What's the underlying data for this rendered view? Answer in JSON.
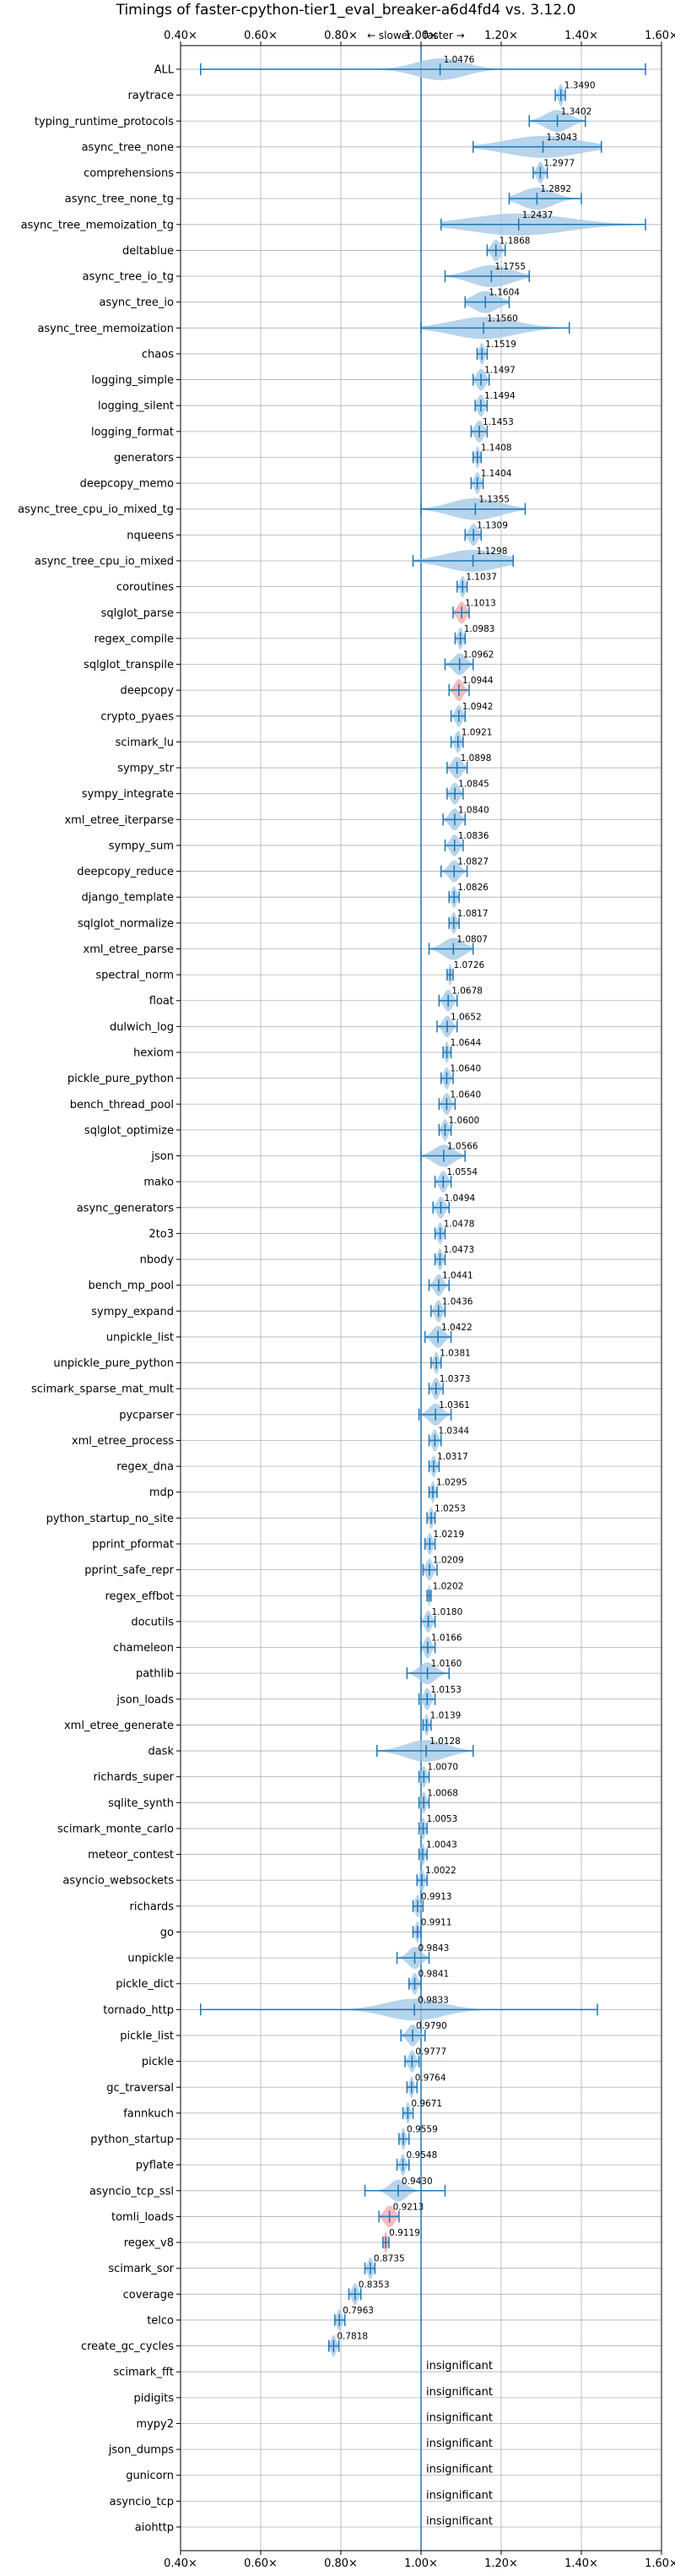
{
  "chart_data": {
    "type": "violin",
    "title": "Timings of faster-cpython-tier1_eval_breaker-a6d4fd4 vs. 3.12.0",
    "subtitle_left": "← slower",
    "subtitle_right": "faster →",
    "xlim": [
      0.4,
      1.6
    ],
    "xticks": [
      "0.40×",
      "0.60×",
      "0.80×",
      "1.00×",
      "1.20×",
      "1.40×",
      "1.60×"
    ],
    "xtick_values": [
      0.4,
      0.6,
      0.8,
      1.0,
      1.2,
      1.4,
      1.6
    ],
    "reference_line": 1.0,
    "grid": true,
    "benchmarks": [
      {
        "name": "ALL",
        "value": 1.0476,
        "label": "1.0476",
        "lo": 0.45,
        "hi": 1.56,
        "spread": 0.06
      },
      {
        "name": "raytrace",
        "value": 1.349,
        "label": "1.3490",
        "lo": 1.335,
        "hi": 1.36,
        "spread": 0.006
      },
      {
        "name": "typing_runtime_protocols",
        "value": 1.3402,
        "label": "1.3402",
        "lo": 1.27,
        "hi": 1.41,
        "spread": 0.03
      },
      {
        "name": "async_tree_none",
        "value": 1.3043,
        "label": "1.3043",
        "lo": 1.13,
        "hi": 1.45,
        "spread": 0.09
      },
      {
        "name": "comprehensions",
        "value": 1.2977,
        "label": "1.2977",
        "lo": 1.28,
        "hi": 1.315,
        "spread": 0.008
      },
      {
        "name": "async_tree_none_tg",
        "value": 1.2892,
        "label": "1.2892",
        "lo": 1.22,
        "hi": 1.4,
        "spread": 0.04
      },
      {
        "name": "async_tree_memoization_tg",
        "value": 1.2437,
        "label": "1.2437",
        "lo": 1.05,
        "hi": 1.56,
        "spread": 0.12
      },
      {
        "name": "deltablue",
        "value": 1.1868,
        "label": "1.1868",
        "lo": 1.165,
        "hi": 1.21,
        "spread": 0.01
      },
      {
        "name": "async_tree_io_tg",
        "value": 1.1755,
        "label": "1.1755",
        "lo": 1.06,
        "hi": 1.27,
        "spread": 0.05
      },
      {
        "name": "async_tree_io",
        "value": 1.1604,
        "label": "1.1604",
        "lo": 1.11,
        "hi": 1.22,
        "spread": 0.03
      },
      {
        "name": "async_tree_memoization",
        "value": 1.156,
        "label": "1.1560",
        "lo": 1.0,
        "hi": 1.37,
        "spread": 0.08
      },
      {
        "name": "chaos",
        "value": 1.1519,
        "label": "1.1519",
        "lo": 1.14,
        "hi": 1.165,
        "spread": 0.006
      },
      {
        "name": "logging_simple",
        "value": 1.1497,
        "label": "1.1497",
        "lo": 1.13,
        "hi": 1.17,
        "spread": 0.01
      },
      {
        "name": "logging_silent",
        "value": 1.1494,
        "label": "1.1494",
        "lo": 1.135,
        "hi": 1.165,
        "spread": 0.008
      },
      {
        "name": "logging_format",
        "value": 1.1453,
        "label": "1.1453",
        "lo": 1.125,
        "hi": 1.165,
        "spread": 0.01
      },
      {
        "name": "generators",
        "value": 1.1408,
        "label": "1.1408",
        "lo": 1.13,
        "hi": 1.15,
        "spread": 0.005
      },
      {
        "name": "deepcopy_memo",
        "value": 1.1404,
        "label": "1.1404",
        "lo": 1.125,
        "hi": 1.155,
        "spread": 0.007
      },
      {
        "name": "async_tree_cpu_io_mixed_tg",
        "value": 1.1355,
        "label": "1.1355",
        "lo": 1.0,
        "hi": 1.26,
        "spread": 0.06
      },
      {
        "name": "nqueens",
        "value": 1.1309,
        "label": "1.1309",
        "lo": 1.11,
        "hi": 1.15,
        "spread": 0.01
      },
      {
        "name": "async_tree_cpu_io_mixed",
        "value": 1.1298,
        "label": "1.1298",
        "lo": 0.98,
        "hi": 1.23,
        "spread": 0.07
      },
      {
        "name": "coroutines",
        "value": 1.1037,
        "label": "1.1037",
        "lo": 1.09,
        "hi": 1.115,
        "spread": 0.006
      },
      {
        "name": "sqlglot_parse",
        "value": 1.1013,
        "label": "1.1013",
        "lo": 1.08,
        "hi": 1.12,
        "spread": 0.01,
        "highlight": true
      },
      {
        "name": "regex_compile",
        "value": 1.0983,
        "label": "1.0983",
        "lo": 1.085,
        "hi": 1.11,
        "spread": 0.006
      },
      {
        "name": "sqlglot_transpile",
        "value": 1.0962,
        "label": "1.0962",
        "lo": 1.06,
        "hi": 1.13,
        "spread": 0.015
      },
      {
        "name": "deepcopy",
        "value": 1.0944,
        "label": "1.0944",
        "lo": 1.07,
        "hi": 1.12,
        "spread": 0.01,
        "highlight": true
      },
      {
        "name": "crypto_pyaes",
        "value": 1.0942,
        "label": "1.0942",
        "lo": 1.075,
        "hi": 1.11,
        "spread": 0.008
      },
      {
        "name": "scimark_lu",
        "value": 1.0921,
        "label": "1.0921",
        "lo": 1.075,
        "hi": 1.105,
        "spread": 0.007
      },
      {
        "name": "sympy_str",
        "value": 1.0898,
        "label": "1.0898",
        "lo": 1.065,
        "hi": 1.115,
        "spread": 0.012
      },
      {
        "name": "sympy_integrate",
        "value": 1.0845,
        "label": "1.0845",
        "lo": 1.065,
        "hi": 1.105,
        "spread": 0.01
      },
      {
        "name": "xml_etree_iterparse",
        "value": 1.084,
        "label": "1.0840",
        "lo": 1.055,
        "hi": 1.11,
        "spread": 0.012
      },
      {
        "name": "sympy_sum",
        "value": 1.0836,
        "label": "1.0836",
        "lo": 1.06,
        "hi": 1.105,
        "spread": 0.01
      },
      {
        "name": "deepcopy_reduce",
        "value": 1.0827,
        "label": "1.0827",
        "lo": 1.05,
        "hi": 1.115,
        "spread": 0.013
      },
      {
        "name": "django_template",
        "value": 1.0826,
        "label": "1.0826",
        "lo": 1.07,
        "hi": 1.095,
        "spread": 0.006
      },
      {
        "name": "sqlglot_normalize",
        "value": 1.0817,
        "label": "1.0817",
        "lo": 1.07,
        "hi": 1.095,
        "spread": 0.006
      },
      {
        "name": "xml_etree_parse",
        "value": 1.0807,
        "label": "1.0807",
        "lo": 1.02,
        "hi": 1.13,
        "spread": 0.025
      },
      {
        "name": "spectral_norm",
        "value": 1.0726,
        "label": "1.0726",
        "lo": 1.065,
        "hi": 1.08,
        "spread": 0.004
      },
      {
        "name": "float",
        "value": 1.0678,
        "label": "1.0678",
        "lo": 1.045,
        "hi": 1.09,
        "spread": 0.01
      },
      {
        "name": "dulwich_log",
        "value": 1.0652,
        "label": "1.0652",
        "lo": 1.04,
        "hi": 1.09,
        "spread": 0.01
      },
      {
        "name": "hexiom",
        "value": 1.0644,
        "label": "1.0644",
        "lo": 1.055,
        "hi": 1.075,
        "spread": 0.005
      },
      {
        "name": "pickle_pure_python",
        "value": 1.064,
        "label": "1.0640",
        "lo": 1.05,
        "hi": 1.08,
        "spread": 0.007
      },
      {
        "name": "bench_thread_pool",
        "value": 1.064,
        "label": "1.0640",
        "lo": 1.045,
        "hi": 1.085,
        "spread": 0.009
      },
      {
        "name": "sqlglot_optimize",
        "value": 1.06,
        "label": "1.0600",
        "lo": 1.045,
        "hi": 1.075,
        "spread": 0.007
      },
      {
        "name": "json",
        "value": 1.0566,
        "label": "1.0566",
        "lo": 1.0,
        "hi": 1.11,
        "spread": 0.025
      },
      {
        "name": "mako",
        "value": 1.0554,
        "label": "1.0554",
        "lo": 1.035,
        "hi": 1.075,
        "spread": 0.009
      },
      {
        "name": "async_generators",
        "value": 1.0494,
        "label": "1.0494",
        "lo": 1.03,
        "hi": 1.07,
        "spread": 0.009
      },
      {
        "name": "2to3",
        "value": 1.0478,
        "label": "1.0478",
        "lo": 1.035,
        "hi": 1.06,
        "spread": 0.006
      },
      {
        "name": "nbody",
        "value": 1.0473,
        "label": "1.0473",
        "lo": 1.035,
        "hi": 1.06,
        "spread": 0.006
      },
      {
        "name": "bench_mp_pool",
        "value": 1.0441,
        "label": "1.0441",
        "lo": 1.02,
        "hi": 1.07,
        "spread": 0.01
      },
      {
        "name": "sympy_expand",
        "value": 1.0436,
        "label": "1.0436",
        "lo": 1.025,
        "hi": 1.06,
        "spread": 0.008
      },
      {
        "name": "unpickle_list",
        "value": 1.0422,
        "label": "1.0422",
        "lo": 1.01,
        "hi": 1.075,
        "spread": 0.014
      },
      {
        "name": "unpickle_pure_python",
        "value": 1.0381,
        "label": "1.0381",
        "lo": 1.025,
        "hi": 1.05,
        "spread": 0.006
      },
      {
        "name": "scimark_sparse_mat_mult",
        "value": 1.0373,
        "label": "1.0373",
        "lo": 1.02,
        "hi": 1.055,
        "spread": 0.008
      },
      {
        "name": "pycparser",
        "value": 1.0361,
        "label": "1.0361",
        "lo": 0.995,
        "hi": 1.075,
        "spread": 0.016
      },
      {
        "name": "xml_etree_process",
        "value": 1.0344,
        "label": "1.0344",
        "lo": 1.02,
        "hi": 1.05,
        "spread": 0.007
      },
      {
        "name": "regex_dna",
        "value": 1.0317,
        "label": "1.0317",
        "lo": 1.02,
        "hi": 1.045,
        "spread": 0.006
      },
      {
        "name": "mdp",
        "value": 1.0295,
        "label": "1.0295",
        "lo": 1.02,
        "hi": 1.04,
        "spread": 0.005
      },
      {
        "name": "python_startup_no_site",
        "value": 1.0253,
        "label": "1.0253",
        "lo": 1.015,
        "hi": 1.035,
        "spread": 0.005
      },
      {
        "name": "pprint_pformat",
        "value": 1.0219,
        "label": "1.0219",
        "lo": 1.01,
        "hi": 1.035,
        "spread": 0.006
      },
      {
        "name": "pprint_safe_repr",
        "value": 1.0209,
        "label": "1.0209",
        "lo": 1.005,
        "hi": 1.04,
        "spread": 0.008
      },
      {
        "name": "regex_effbot",
        "value": 1.0202,
        "label": "1.0202",
        "lo": 1.015,
        "hi": 1.025,
        "spread": 0.003
      },
      {
        "name": "docutils",
        "value": 1.018,
        "label": "1.0180",
        "lo": 1.0,
        "hi": 1.035,
        "spread": 0.008
      },
      {
        "name": "chameleon",
        "value": 1.0166,
        "label": "1.0166",
        "lo": 1.0,
        "hi": 1.035,
        "spread": 0.008
      },
      {
        "name": "pathlib",
        "value": 1.016,
        "label": "1.0160",
        "lo": 0.965,
        "hi": 1.07,
        "spread": 0.02
      },
      {
        "name": "json_loads",
        "value": 1.0153,
        "label": "1.0153",
        "lo": 0.995,
        "hi": 1.035,
        "spread": 0.008
      },
      {
        "name": "xml_etree_generate",
        "value": 1.0139,
        "label": "1.0139",
        "lo": 1.005,
        "hi": 1.025,
        "spread": 0.005
      },
      {
        "name": "dask",
        "value": 1.0128,
        "label": "1.0128",
        "lo": 0.89,
        "hi": 1.13,
        "spread": 0.05
      },
      {
        "name": "richards_super",
        "value": 1.007,
        "label": "1.0070",
        "lo": 0.995,
        "hi": 1.02,
        "spread": 0.006
      },
      {
        "name": "sqlite_synth",
        "value": 1.0068,
        "label": "1.0068",
        "lo": 0.995,
        "hi": 1.02,
        "spread": 0.006
      },
      {
        "name": "scimark_monte_carlo",
        "value": 1.0053,
        "label": "1.0053",
        "lo": 0.995,
        "hi": 1.015,
        "spread": 0.005
      },
      {
        "name": "meteor_contest",
        "value": 1.0043,
        "label": "1.0043",
        "lo": 0.995,
        "hi": 1.015,
        "spread": 0.005
      },
      {
        "name": "asyncio_websockets",
        "value": 1.0022,
        "label": "1.0022",
        "lo": 0.99,
        "hi": 1.015,
        "spread": 0.006
      },
      {
        "name": "richards",
        "value": 0.9913,
        "label": "0.9913",
        "lo": 0.98,
        "hi": 1.005,
        "spread": 0.006
      },
      {
        "name": "go",
        "value": 0.9911,
        "label": "0.9911",
        "lo": 0.98,
        "hi": 1.0,
        "spread": 0.005
      },
      {
        "name": "unpickle",
        "value": 0.9843,
        "label": "0.9843",
        "lo": 0.94,
        "hi": 1.02,
        "spread": 0.016
      },
      {
        "name": "pickle_dict",
        "value": 0.9841,
        "label": "0.9841",
        "lo": 0.97,
        "hi": 1.0,
        "spread": 0.007
      },
      {
        "name": "tornado_http",
        "value": 0.9833,
        "label": "0.9833",
        "lo": 0.45,
        "hi": 1.44,
        "spread": 0.07
      },
      {
        "name": "pickle_list",
        "value": 0.979,
        "label": "0.9790",
        "lo": 0.95,
        "hi": 1.01,
        "spread": 0.012
      },
      {
        "name": "pickle",
        "value": 0.9777,
        "label": "0.9777",
        "lo": 0.96,
        "hi": 0.995,
        "spread": 0.008
      },
      {
        "name": "gc_traversal",
        "value": 0.9764,
        "label": "0.9764",
        "lo": 0.965,
        "hi": 0.99,
        "spread": 0.005
      },
      {
        "name": "fannkuch",
        "value": 0.9671,
        "label": "0.9671",
        "lo": 0.955,
        "hi": 0.98,
        "spread": 0.005
      },
      {
        "name": "python_startup",
        "value": 0.9559,
        "label": "0.9559",
        "lo": 0.945,
        "hi": 0.97,
        "spread": 0.005
      },
      {
        "name": "pyflate",
        "value": 0.9548,
        "label": "0.9548",
        "lo": 0.94,
        "hi": 0.97,
        "spread": 0.006
      },
      {
        "name": "asyncio_tcp_ssl",
        "value": 0.943,
        "label": "0.9430",
        "lo": 0.86,
        "hi": 1.06,
        "spread": 0.02
      },
      {
        "name": "tomli_loads",
        "value": 0.9213,
        "label": "0.9213",
        "lo": 0.895,
        "hi": 0.945,
        "spread": 0.012,
        "highlight": true
      },
      {
        "name": "regex_v8",
        "value": 0.9119,
        "label": "0.9119",
        "lo": 0.905,
        "hi": 0.92,
        "spread": 0.004,
        "highlight": true
      },
      {
        "name": "scimark_sor",
        "value": 0.8735,
        "label": "0.8735",
        "lo": 0.86,
        "hi": 0.885,
        "spread": 0.006
      },
      {
        "name": "coverage",
        "value": 0.8353,
        "label": "0.8353",
        "lo": 0.82,
        "hi": 0.85,
        "spread": 0.007
      },
      {
        "name": "telco",
        "value": 0.7963,
        "label": "0.7963",
        "lo": 0.785,
        "hi": 0.81,
        "spread": 0.006
      },
      {
        "name": "create_gc_cycles",
        "value": 0.7818,
        "label": "0.7818",
        "lo": 0.77,
        "hi": 0.795,
        "spread": 0.006
      },
      {
        "name": "scimark_fft",
        "value": null,
        "label": "insignificant"
      },
      {
        "name": "pidigits",
        "value": null,
        "label": "insignificant"
      },
      {
        "name": "mypy2",
        "value": null,
        "label": "insignificant"
      },
      {
        "name": "json_dumps",
        "value": null,
        "label": "insignificant"
      },
      {
        "name": "gunicorn",
        "value": null,
        "label": "insignificant"
      },
      {
        "name": "asyncio_tcp",
        "value": null,
        "label": "insignificant"
      },
      {
        "name": "aiohttp",
        "value": null,
        "label": "insignificant"
      }
    ]
  }
}
